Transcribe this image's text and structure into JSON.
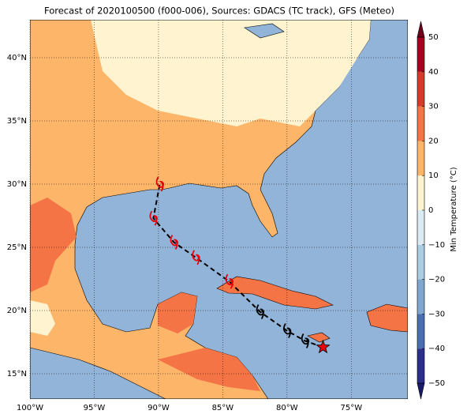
{
  "map": {
    "title": "Forecast of 2020100500 (f000-006), Sources: GDACS (TC track), GFS (Meteo)",
    "lon_range": [
      -100,
      -70.6
    ],
    "lat_range": [
      13,
      43
    ],
    "xticks": [
      {
        "value": -100,
        "label": "100°W"
      },
      {
        "value": -95,
        "label": "95°W"
      },
      {
        "value": -90,
        "label": "90°W"
      },
      {
        "value": -85,
        "label": "85°W"
      },
      {
        "value": -80,
        "label": "80°W"
      },
      {
        "value": -75,
        "label": "75°W"
      }
    ],
    "yticks": [
      {
        "value": 15,
        "label": "15°N"
      },
      {
        "value": 20,
        "label": "20°N"
      },
      {
        "value": 25,
        "label": "25°N"
      },
      {
        "value": 30,
        "label": "30°N"
      },
      {
        "value": 35,
        "label": "35°N"
      },
      {
        "value": 40,
        "label": "40°N"
      }
    ],
    "grid": true,
    "track": [
      {
        "lon": -77.2,
        "lat": 17.1,
        "color": "#e8000b"
      },
      {
        "lon": -78.6,
        "lat": 17.6,
        "color": "#000000"
      },
      {
        "lon": -80.0,
        "lat": 18.4,
        "color": "#000000"
      },
      {
        "lon": -82.1,
        "lat": 19.9,
        "color": "#000000"
      },
      {
        "lon": -84.5,
        "lat": 22.3,
        "color": "#e8000b"
      },
      {
        "lon": -87.1,
        "lat": 24.2,
        "color": "#e8000b"
      },
      {
        "lon": -88.8,
        "lat": 25.4,
        "color": "#e8000b"
      },
      {
        "lon": -90.4,
        "lat": 27.3,
        "color": "#e8000b"
      },
      {
        "lon": -89.9,
        "lat": 30.0,
        "color": "#e8000b"
      }
    ],
    "colorbar": {
      "label": "Min Temperature (°C)",
      "range": [
        -50,
        50
      ],
      "ticks": [
        {
          "value": -50,
          "label": "−50"
        },
        {
          "value": -40,
          "label": "−40"
        },
        {
          "value": -30,
          "label": "−30"
        },
        {
          "value": -20,
          "label": "−20"
        },
        {
          "value": -10,
          "label": "−10"
        },
        0,
        10,
        20,
        30,
        40,
        50
      ],
      "colors": [
        "#2b2f8a",
        "#4a6fb0",
        "#7fa7d0",
        "#aacde3",
        "#dcebf3",
        "#fff3d0",
        "#fdb56a",
        "#f47446",
        "#d63a2a",
        "#a8001f"
      ],
      "under_color": "#1b1b6e",
      "over_color": "#70001a"
    }
  }
}
